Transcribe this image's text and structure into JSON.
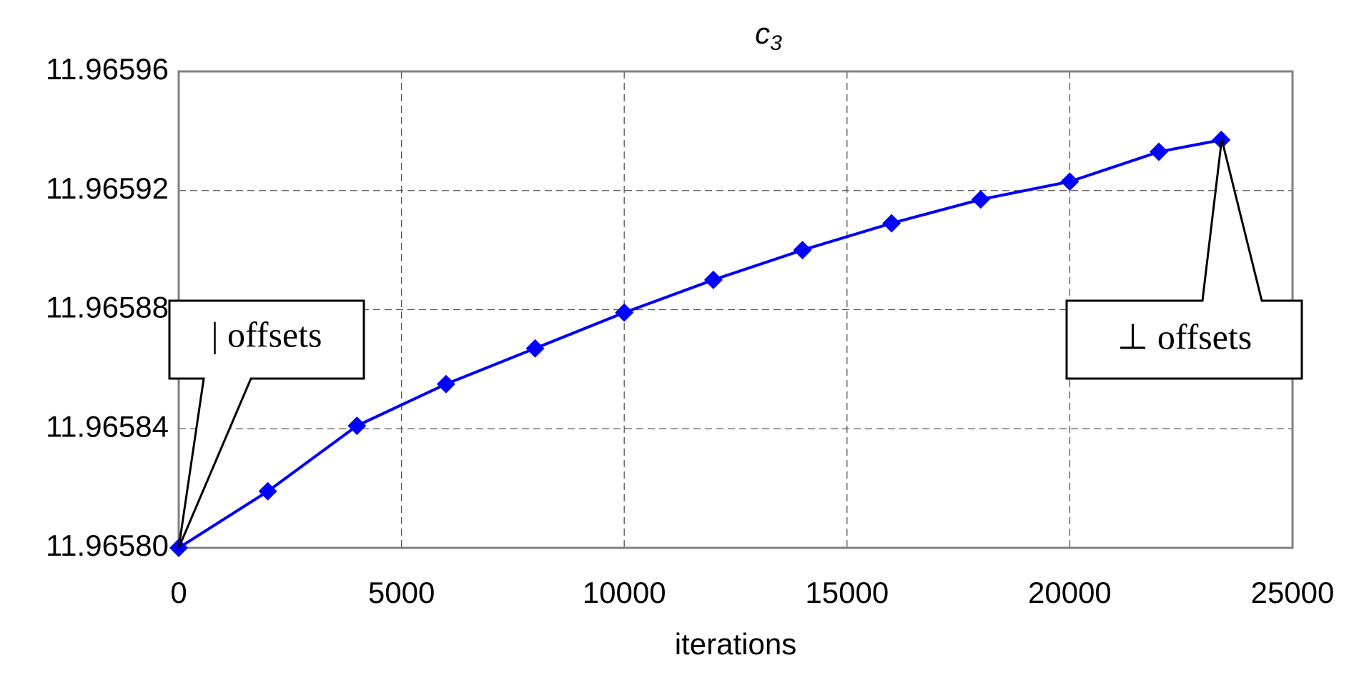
{
  "chart_data": {
    "type": "line",
    "title": "c",
    "title_subscript": "3",
    "x_label": "iterations",
    "x": [
      0,
      2000,
      4000,
      6000,
      8000,
      10000,
      12000,
      14000,
      16000,
      18000,
      20000,
      22000,
      23400
    ],
    "series": [
      {
        "color": "#0000ff",
        "values": [
          11.9658,
          11.965819,
          11.965841,
          11.965855,
          11.965867,
          11.965879,
          11.96589,
          11.9659,
          11.965909,
          11.965917,
          11.965923,
          11.965933,
          11.965937
        ]
      }
    ],
    "xlim": [
      0,
      25000
    ],
    "xticks": [
      0,
      5000,
      10000,
      15000,
      20000,
      25000
    ],
    "ylim": [
      11.9658,
      11.96596
    ],
    "yticks": [
      {
        "value": 11.9658,
        "label": "11.96580"
      },
      11.96584,
      11.96588,
      11.96592,
      11.96596
    ],
    "grid": true,
    "annotations": [
      {
        "text": "| offsets"
      },
      {
        "text": "⊥ offsets"
      }
    ]
  }
}
